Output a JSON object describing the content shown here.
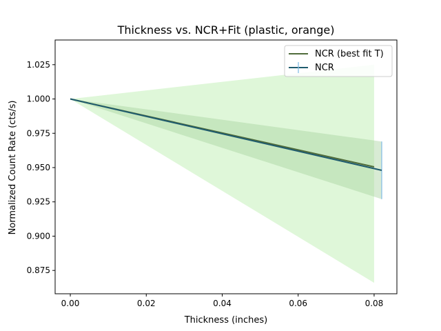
{
  "chart_data": {
    "type": "line",
    "title": "Thickness vs. NCR+Fit (plastic, orange)",
    "xlabel": "Thickness (inches)",
    "ylabel": "Normalized Count Rate (cts/s)",
    "xlim": [
      -0.004,
      0.086
    ],
    "ylim": [
      0.858,
      1.043
    ],
    "xticks": [
      0.0,
      0.02,
      0.04,
      0.06,
      0.08
    ],
    "xtick_labels": [
      "0.00",
      "0.02",
      "0.04",
      "0.06",
      "0.08"
    ],
    "yticks": [
      0.875,
      0.9,
      0.925,
      0.95,
      0.975,
      1.0,
      1.025
    ],
    "ytick_labels": [
      "0.875",
      "0.900",
      "0.925",
      "0.950",
      "0.975",
      "1.000",
      "1.025"
    ],
    "grid": false,
    "legend_position": "upper-right",
    "series": [
      {
        "name": "NCR (best fit T)",
        "color": "#4f6b3a",
        "x": [
          0.0,
          0.08
        ],
        "y": [
          1.0,
          0.9505
        ],
        "band_lower": [
          1.0,
          0.866
        ],
        "band_upper": [
          1.0,
          1.025
        ],
        "band_color": "#b9eeab"
      },
      {
        "name": "NCR",
        "color": "#1f5b6e",
        "errorbar_color": "#86bee6",
        "x": [
          0.0,
          0.082
        ],
        "y": [
          1.0,
          0.948
        ],
        "yerr": [
          0.0,
          0.021
        ],
        "band_lower": [
          1.0,
          0.927
        ],
        "band_upper": [
          1.0,
          0.969
        ],
        "band_color": "#a8d2a0"
      }
    ]
  }
}
